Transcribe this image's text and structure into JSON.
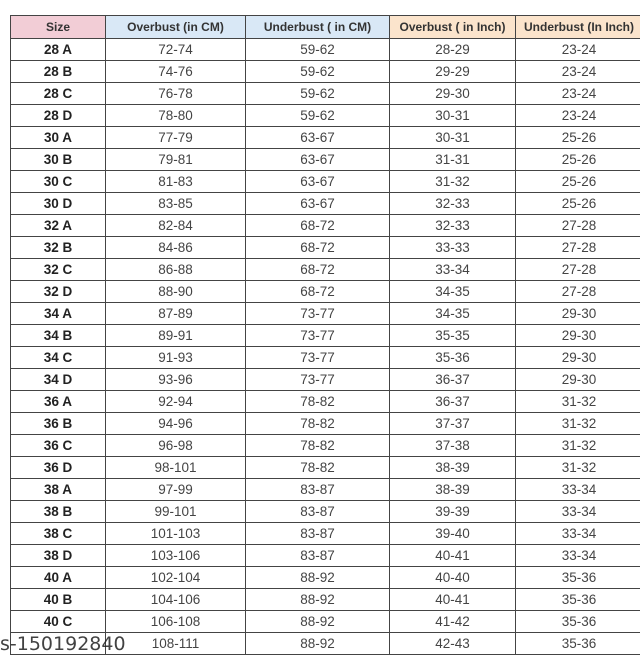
{
  "colors": {
    "size_header": "#f2cdd6",
    "cm_header": "#d9e8f6",
    "inch_header": "#fbe4cc"
  },
  "headers": [
    "Size",
    "Overbust (in CM)",
    "Underbust ( in CM)",
    "Overbust ( in Inch)",
    "Underbust (In Inch)"
  ],
  "rows": [
    [
      "28 A",
      "72-74",
      "59-62",
      "28-29",
      "23-24"
    ],
    [
      "28 B",
      "74-76",
      "59-62",
      "29-29",
      "23-24"
    ],
    [
      "28 C",
      "76-78",
      "59-62",
      "29-30",
      "23-24"
    ],
    [
      "28 D",
      "78-80",
      "59-62",
      "30-31",
      "23-24"
    ],
    [
      "30 A",
      "77-79",
      "63-67",
      "30-31",
      "25-26"
    ],
    [
      "30 B",
      "79-81",
      "63-67",
      "31-31",
      "25-26"
    ],
    [
      "30 C",
      "81-83",
      "63-67",
      "31-32",
      "25-26"
    ],
    [
      "30 D",
      "83-85",
      "63-67",
      "32-33",
      "25-26"
    ],
    [
      "32 A",
      "82-84",
      "68-72",
      "32-33",
      "27-28"
    ],
    [
      "32 B",
      "84-86",
      "68-72",
      "33-33",
      "27-28"
    ],
    [
      "32 C",
      "86-88",
      "68-72",
      "33-34",
      "27-28"
    ],
    [
      "32 D",
      "88-90",
      "68-72",
      "34-35",
      "27-28"
    ],
    [
      "34 A",
      "87-89",
      "73-77",
      "34-35",
      "29-30"
    ],
    [
      "34 B",
      "89-91",
      "73-77",
      "35-35",
      "29-30"
    ],
    [
      "34 C",
      "91-93",
      "73-77",
      "35-36",
      "29-30"
    ],
    [
      "34 D",
      "93-96",
      "73-77",
      "36-37",
      "29-30"
    ],
    [
      "36 A",
      "92-94",
      "78-82",
      "36-37",
      "31-32"
    ],
    [
      "36 B",
      "94-96",
      "78-82",
      "37-37",
      "31-32"
    ],
    [
      "36 C",
      "96-98",
      "78-82",
      "37-38",
      "31-32"
    ],
    [
      "36 D",
      "98-101",
      "78-82",
      "38-39",
      "31-32"
    ],
    [
      "38 A",
      "97-99",
      "83-87",
      "38-39",
      "33-34"
    ],
    [
      "38 B",
      "99-101",
      "83-87",
      "39-39",
      "33-34"
    ],
    [
      "38 C",
      "101-103",
      "83-87",
      "39-40",
      "33-34"
    ],
    [
      "38 D",
      "103-106",
      "83-87",
      "40-41",
      "33-34"
    ],
    [
      "40 A",
      "102-104",
      "88-92",
      "40-40",
      "35-36"
    ],
    [
      "40 B",
      "104-106",
      "88-92",
      "40-41",
      "35-36"
    ],
    [
      "40 C",
      "106-108",
      "88-92",
      "41-42",
      "35-36"
    ],
    [
      "",
      "108-111",
      "88-92",
      "42-43",
      "35-36"
    ]
  ],
  "watermark": "s-150192840"
}
